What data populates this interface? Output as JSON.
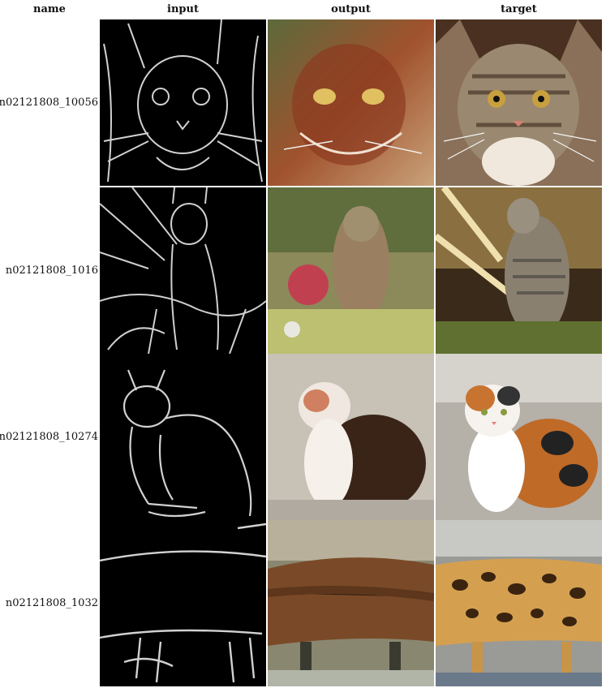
{
  "headers": {
    "name": "name",
    "input": "input",
    "output": "output",
    "target": "target"
  },
  "rows": [
    {
      "name": "n02121808_10056"
    },
    {
      "name": "n02121808_1016"
    },
    {
      "name": "n02121808_10274"
    },
    {
      "name": "n02121808_1032"
    }
  ]
}
